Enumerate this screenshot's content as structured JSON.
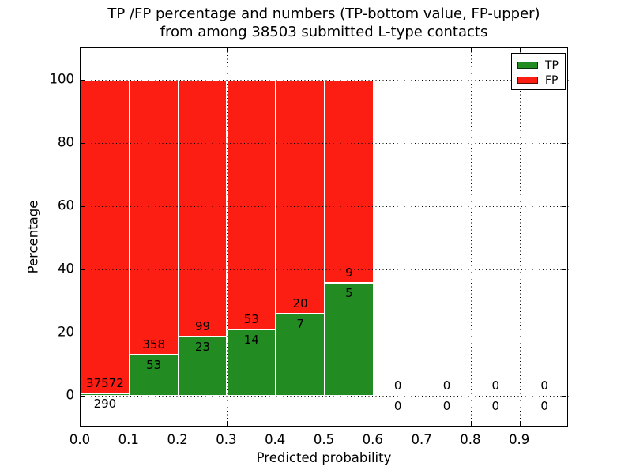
{
  "colors": {
    "tp_green": "#228b22",
    "fp_red": "#fc1d13",
    "background": "#ffffff",
    "axes": "#000000",
    "bar_edge": "#ffffff"
  },
  "chart_data": {
    "type": "bar",
    "stacked": true,
    "title": "TP /FP percentage and numbers (TP-bottom value, FP-upper)\nfrom among 38503 submitted L-type contacts",
    "title_lines": [
      "TP /FP percentage and numbers (TP-bottom value, FP-upper)",
      "from among 38503 submitted L-type contacts"
    ],
    "xlabel": "Predicted probability",
    "ylabel": "Percentage",
    "total_submitted_contacts": 38503,
    "xlim": [
      0.0,
      1.0
    ],
    "ylim": [
      -10,
      110
    ],
    "bar_width": 0.1,
    "bin_edges": [
      0.0,
      0.1,
      0.2,
      0.3,
      0.4,
      0.5,
      0.6,
      0.7,
      0.8,
      0.9,
      1.0
    ],
    "xticks": [
      0.0,
      0.1,
      0.2,
      0.3,
      0.4,
      0.5,
      0.6,
      0.7,
      0.8,
      0.9
    ],
    "xticklabels": [
      "0.0",
      "0.1",
      "0.2",
      "0.3",
      "0.4",
      "0.5",
      "0.6",
      "0.7",
      "0.8",
      "0.9"
    ],
    "yticks": [
      0,
      20,
      40,
      60,
      80,
      100
    ],
    "yticklabels": [
      "0",
      "20",
      "40",
      "60",
      "80",
      "100"
    ],
    "grid": true,
    "grid_style": "dotted",
    "series": [
      {
        "name": "TP",
        "color": "#228b22",
        "counts": [
          290,
          53,
          23,
          14,
          7,
          5,
          0,
          0,
          0,
          0
        ],
        "pct": [
          0.77,
          12.9,
          18.85,
          20.9,
          25.93,
          35.71,
          0,
          0,
          0,
          0
        ]
      },
      {
        "name": "FP",
        "color": "#fc1d13",
        "counts": [
          37572,
          358,
          99,
          53,
          20,
          9,
          0,
          0,
          0,
          0
        ],
        "pct": [
          99.23,
          87.1,
          81.15,
          79.1,
          74.07,
          64.29,
          0,
          0,
          0,
          0
        ]
      }
    ],
    "legend": {
      "position": "upper right",
      "entries": [
        {
          "label": "TP",
          "color": "#228b22"
        },
        {
          "label": "FP",
          "color": "#fc1d13"
        }
      ]
    }
  }
}
